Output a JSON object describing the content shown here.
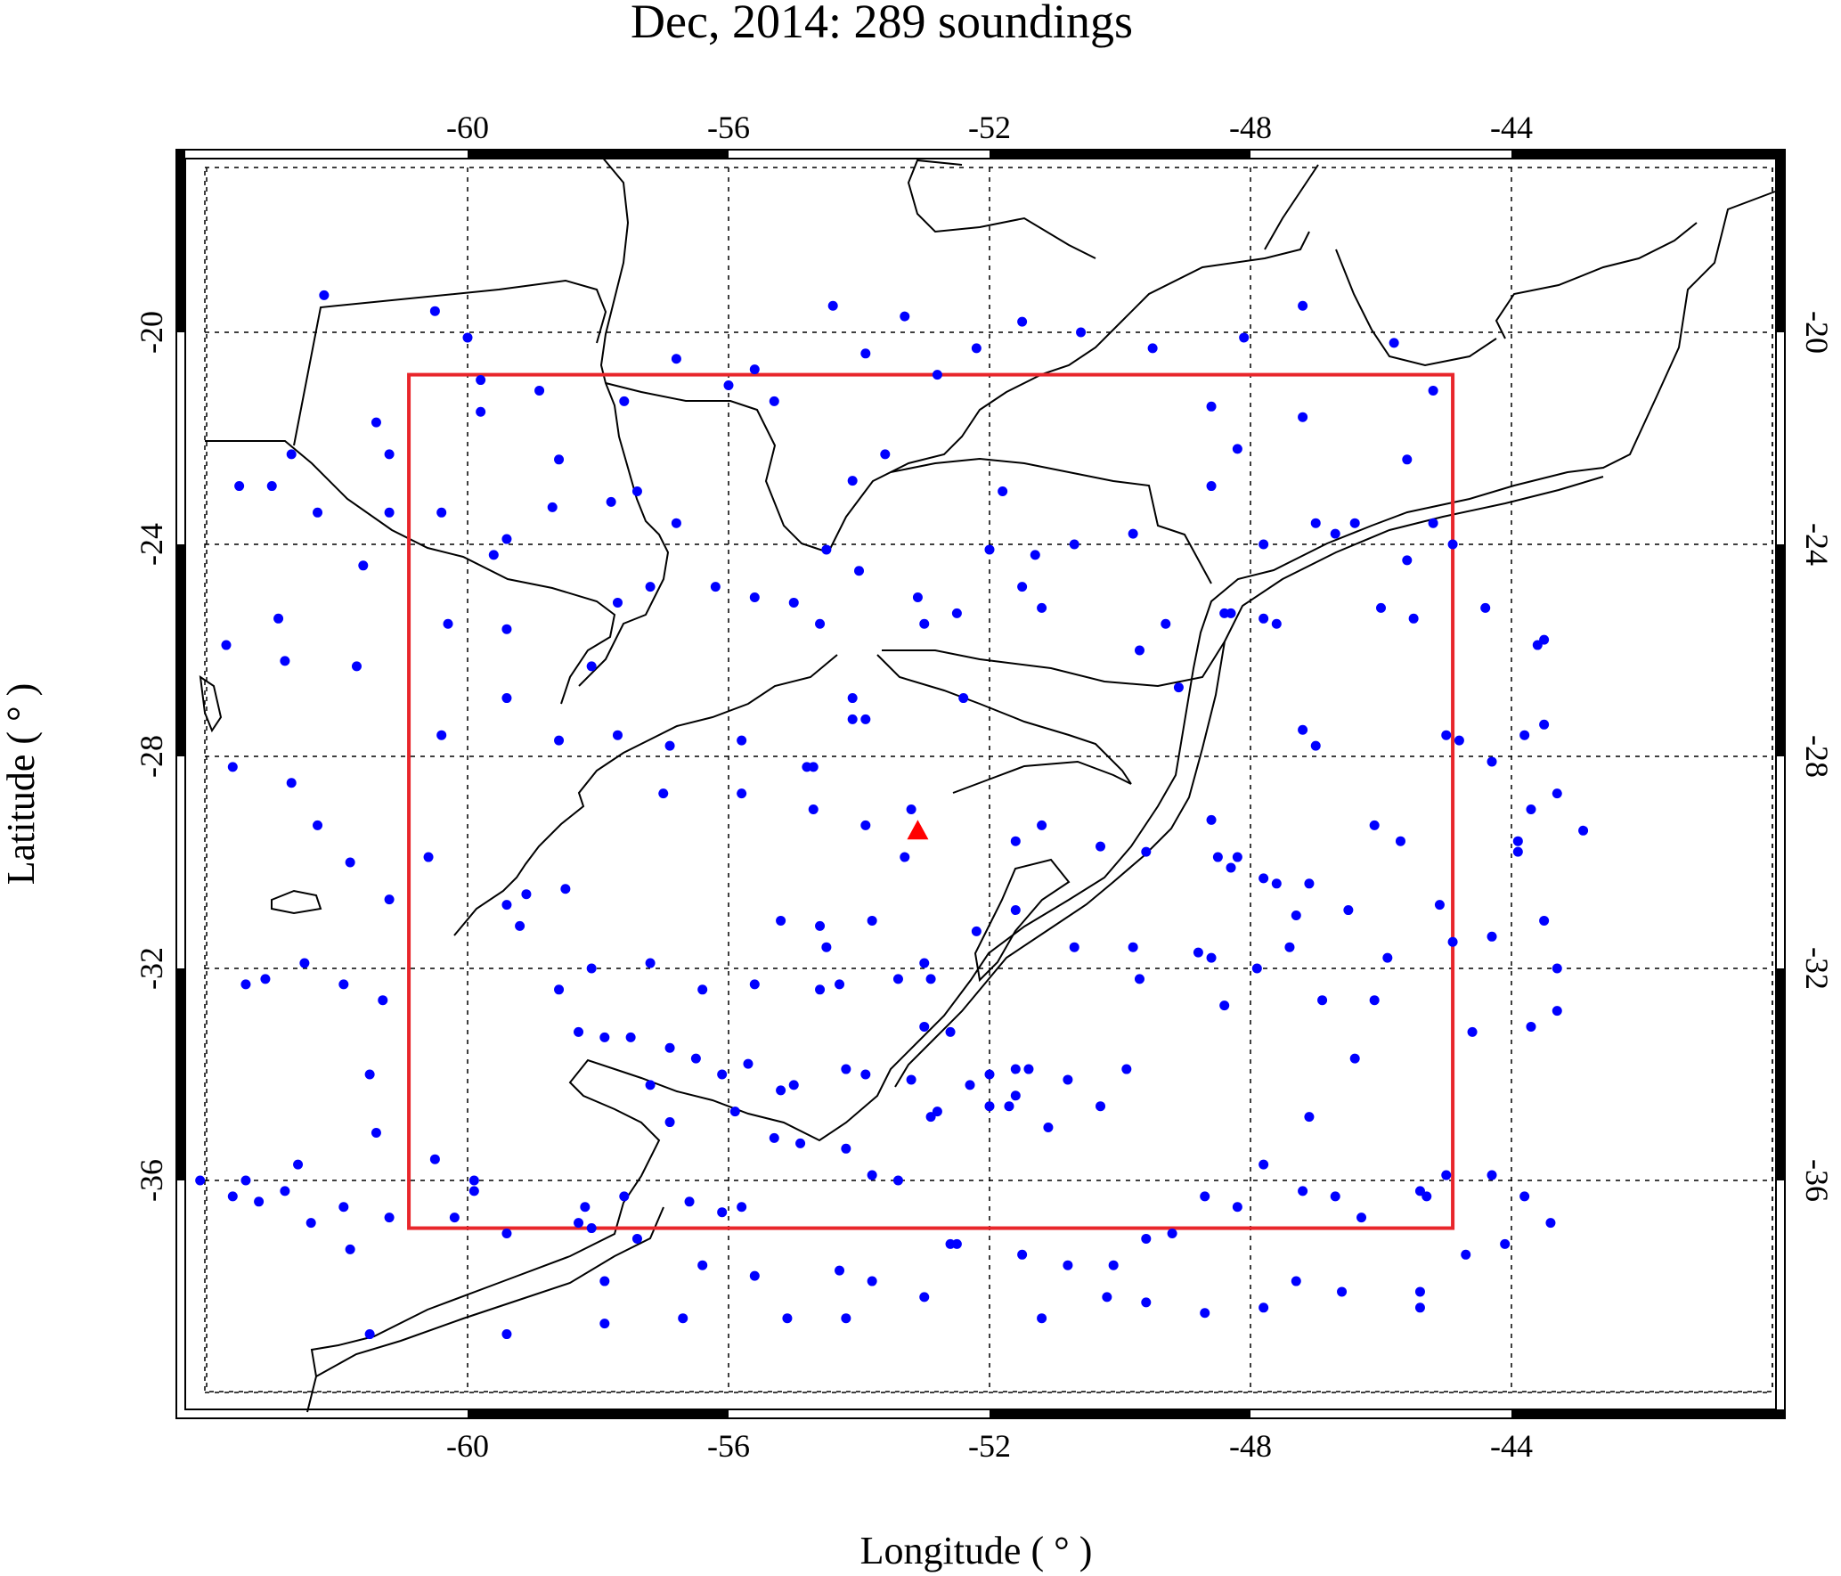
{
  "title": "Dec, 2014: 289 soundings",
  "x_axis_label": "Longitude ( ° )",
  "y_axis_label": "Latitude ( ° )",
  "x_ticks": [
    "-60",
    "-56",
    "-52",
    "-48",
    "-44"
  ],
  "y_ticks": [
    "-20",
    "-24",
    "-28",
    "-32",
    "-36"
  ],
  "colors": {
    "soundings": "#0000ff",
    "box": "#e8262b",
    "station": "#ff0000",
    "coastline": "#000000",
    "grid": "#000000"
  },
  "chart_data": {
    "type": "scatter",
    "projection": "mercator-like",
    "lon_range": [
      -64.5,
      -39.8
    ],
    "lat_range": [
      -40.3,
      -16.4
    ],
    "grid": true,
    "grid_lon": [
      -64,
      -60,
      -56,
      -52,
      -48,
      -44,
      -40
    ],
    "grid_lat": [
      -20,
      -24,
      -28,
      -32,
      -36,
      -40
    ],
    "analysis_box": {
      "lon_min": -60.9,
      "lon_max": -44.9,
      "lat_min": -36.9,
      "lat_max": -20.8
    },
    "station": {
      "lon": -53.1,
      "lat": -29.4,
      "marker": "triangle"
    },
    "soundings_count": 289,
    "soundings": [
      [
        -62.2,
        -19.3
      ],
      [
        -60.5,
        -19.6
      ],
      [
        -60.0,
        -20.1
      ],
      [
        -59.8,
        -20.9
      ],
      [
        -61.4,
        -21.7
      ],
      [
        -59.8,
        -21.5
      ],
      [
        -58.9,
        -21.1
      ],
      [
        -62.7,
        -22.3
      ],
      [
        -61.2,
        -22.3
      ],
      [
        -63.5,
        -22.9
      ],
      [
        -63.0,
        -22.9
      ],
      [
        -62.3,
        -23.4
      ],
      [
        -61.2,
        -23.4
      ],
      [
        -60.4,
        -23.4
      ],
      [
        -58.6,
        -22.4
      ],
      [
        -58.7,
        -23.3
      ],
      [
        -57.8,
        -23.2
      ],
      [
        -57.4,
        -23.0
      ],
      [
        -59.4,
        -23.9
      ],
      [
        -59.6,
        -24.2
      ],
      [
        -56.8,
        -23.6
      ],
      [
        -61.6,
        -24.4
      ],
      [
        -60.3,
        -25.5
      ],
      [
        -59.4,
        -25.6
      ],
      [
        -58.1,
        -26.3
      ],
      [
        -57.7,
        -25.1
      ],
      [
        -57.2,
        -24.8
      ],
      [
        -56.2,
        -24.8
      ],
      [
        -55.6,
        -25.0
      ],
      [
        -55.0,
        -25.1
      ],
      [
        -54.5,
        -24.1
      ],
      [
        -54.0,
        -24.5
      ],
      [
        -53.1,
        -25.0
      ],
      [
        -53.0,
        -25.5
      ],
      [
        -54.6,
        -25.5
      ],
      [
        -54.1,
        -26.9
      ],
      [
        -54.1,
        -27.3
      ],
      [
        -53.9,
        -27.3
      ],
      [
        -62.9,
        -25.4
      ],
      [
        -63.7,
        -25.9
      ],
      [
        -62.8,
        -26.2
      ],
      [
        -61.7,
        -26.3
      ],
      [
        -60.4,
        -27.6
      ],
      [
        -59.4,
        -26.9
      ],
      [
        -58.6,
        -27.7
      ],
      [
        -57.7,
        -27.6
      ],
      [
        -56.9,
        -27.8
      ],
      [
        -55.8,
        -27.7
      ],
      [
        -57.0,
        -28.7
      ],
      [
        -55.8,
        -28.7
      ],
      [
        -54.8,
        -28.2
      ],
      [
        -54.7,
        -28.2
      ],
      [
        -54.7,
        -29.0
      ],
      [
        -53.9,
        -29.3
      ],
      [
        -53.3,
        -29.9
      ],
      [
        -53.2,
        -29.0
      ],
      [
        -52.4,
        -26.9
      ],
      [
        -52.5,
        -25.3
      ],
      [
        -51.8,
        -23.0
      ],
      [
        -52.0,
        -24.1
      ],
      [
        -51.3,
        -24.2
      ],
      [
        -50.7,
        -24.0
      ],
      [
        -51.5,
        -24.8
      ],
      [
        -51.2,
        -25.2
      ],
      [
        -49.1,
        -26.7
      ],
      [
        -49.7,
        -26.0
      ],
      [
        -49.3,
        -25.5
      ],
      [
        -48.4,
        -25.3
      ],
      [
        -48.3,
        -25.3
      ],
      [
        -47.8,
        -25.4
      ],
      [
        -47.6,
        -25.5
      ],
      [
        -47.8,
        -24.0
      ],
      [
        -47.0,
        -23.6
      ],
      [
        -46.7,
        -23.8
      ],
      [
        -46.4,
        -23.6
      ],
      [
        -45.6,
        -24.3
      ],
      [
        -45.2,
        -23.6
      ],
      [
        -44.9,
        -24.0
      ],
      [
        -46.0,
        -25.2
      ],
      [
        -45.5,
        -25.4
      ],
      [
        -44.4,
        -25.2
      ],
      [
        -43.5,
        -25.8
      ],
      [
        -43.6,
        -25.9
      ],
      [
        -43.5,
        -27.4
      ],
      [
        -43.8,
        -27.6
      ],
      [
        -44.8,
        -27.7
      ],
      [
        -45.0,
        -27.6
      ],
      [
        -44.3,
        -28.1
      ],
      [
        -43.3,
        -28.7
      ],
      [
        -43.7,
        -29.0
      ],
      [
        -43.9,
        -29.8
      ],
      [
        -43.9,
        -29.6
      ],
      [
        -45.7,
        -29.6
      ],
      [
        -46.1,
        -29.3
      ],
      [
        -47.2,
        -27.5
      ],
      [
        -47.0,
        -27.8
      ],
      [
        -48.6,
        -29.2
      ],
      [
        -49.6,
        -29.8
      ],
      [
        -50.3,
        -29.7
      ],
      [
        -51.6,
        -29.6
      ],
      [
        -51.2,
        -29.3
      ],
      [
        -48.2,
        -29.9
      ],
      [
        -48.3,
        -30.1
      ],
      [
        -48.5,
        -29.9
      ],
      [
        -47.8,
        -30.3
      ],
      [
        -47.6,
        -30.4
      ],
      [
        -47.1,
        -30.4
      ],
      [
        -46.5,
        -30.9
      ],
      [
        -45.1,
        -30.8
      ],
      [
        -44.9,
        -31.5
      ],
      [
        -44.3,
        -31.4
      ],
      [
        -43.3,
        -32.0
      ],
      [
        -43.3,
        -32.8
      ],
      [
        -43.7,
        -33.1
      ],
      [
        -45.9,
        -31.8
      ],
      [
        -46.1,
        -32.6
      ],
      [
        -47.4,
        -31.6
      ],
      [
        -47.3,
        -31.0
      ],
      [
        -47.9,
        -32.0
      ],
      [
        -48.4,
        -32.7
      ],
      [
        -48.8,
        -31.7
      ],
      [
        -48.6,
        -31.8
      ],
      [
        -49.8,
        -31.6
      ],
      [
        -49.7,
        -32.2
      ],
      [
        -50.7,
        -31.6
      ],
      [
        -49.9,
        -33.9
      ],
      [
        -50.8,
        -34.1
      ],
      [
        -51.6,
        -34.4
      ],
      [
        -52.0,
        -34.6
      ],
      [
        -52.8,
        -34.7
      ],
      [
        -52.6,
        -33.2
      ],
      [
        -52.9,
        -32.2
      ],
      [
        -53.0,
        -31.9
      ],
      [
        -52.2,
        -31.3
      ],
      [
        -51.6,
        -30.9
      ],
      [
        -53.8,
        -31.1
      ],
      [
        -55.2,
        -31.1
      ],
      [
        -54.6,
        -31.2
      ],
      [
        -54.5,
        -31.6
      ],
      [
        -54.3,
        -32.3
      ],
      [
        -54.6,
        -32.4
      ],
      [
        -55.6,
        -32.3
      ],
      [
        -56.4,
        -32.4
      ],
      [
        -57.2,
        -31.9
      ],
      [
        -58.1,
        -32.0
      ],
      [
        -58.3,
        -33.2
      ],
      [
        -58.6,
        -32.4
      ],
      [
        -57.9,
        -33.3
      ],
      [
        -57.5,
        -33.3
      ],
      [
        -56.9,
        -33.5
      ],
      [
        -57.2,
        -34.2
      ],
      [
        -56.5,
        -33.7
      ],
      [
        -56.1,
        -34.0
      ],
      [
        -55.7,
        -33.8
      ],
      [
        -55.0,
        -34.2
      ],
      [
        -53.9,
        -34.0
      ],
      [
        -54.2,
        -33.9
      ],
      [
        -53.2,
        -34.1
      ],
      [
        -52.3,
        -34.2
      ],
      [
        -52.0,
        -34.0
      ],
      [
        -53.0,
        -33.1
      ],
      [
        -53.4,
        -32.2
      ],
      [
        -51.4,
        -33.9
      ],
      [
        -50.3,
        -34.6
      ],
      [
        -51.1,
        -35.0
      ],
      [
        -52.9,
        -34.8
      ],
      [
        -51.7,
        -34.6
      ],
      [
        -51.6,
        -33.9
      ],
      [
        -55.2,
        -34.3
      ],
      [
        -55.9,
        -34.7
      ],
      [
        -56.9,
        -34.9
      ],
      [
        -55.3,
        -35.2
      ],
      [
        -54.9,
        -35.3
      ],
      [
        -54.2,
        -35.4
      ],
      [
        -53.8,
        -35.9
      ],
      [
        -53.4,
        -36.0
      ],
      [
        -55.8,
        -36.5
      ],
      [
        -56.1,
        -36.6
      ],
      [
        -57.6,
        -36.3
      ],
      [
        -58.2,
        -36.5
      ],
      [
        -59.9,
        -36.2
      ],
      [
        -61.2,
        -36.7
      ],
      [
        -61.9,
        -36.5
      ],
      [
        -60.2,
        -36.7
      ],
      [
        -61.8,
        -37.3
      ],
      [
        -62.8,
        -36.2
      ],
      [
        -63.4,
        -36.0
      ],
      [
        -62.6,
        -35.7
      ],
      [
        -60.5,
        -35.6
      ],
      [
        -61.5,
        -34.0
      ],
      [
        -61.4,
        -35.1
      ],
      [
        -59.9,
        -36.0
      ],
      [
        -59.4,
        -37.0
      ],
      [
        -58.3,
        -36.8
      ],
      [
        -58.1,
        -36.9
      ],
      [
        -57.9,
        -37.9
      ],
      [
        -57.4,
        -37.1
      ],
      [
        -56.4,
        -37.6
      ],
      [
        -56.6,
        -36.4
      ],
      [
        -55.6,
        -37.8
      ],
      [
        -54.3,
        -37.7
      ],
      [
        -53.8,
        -37.9
      ],
      [
        -52.5,
        -37.2
      ],
      [
        -51.5,
        -37.4
      ],
      [
        -50.8,
        -37.6
      ],
      [
        -50.1,
        -37.6
      ],
      [
        -49.6,
        -37.1
      ],
      [
        -49.2,
        -37.0
      ],
      [
        -48.7,
        -36.3
      ],
      [
        -48.2,
        -36.5
      ],
      [
        -47.2,
        -36.2
      ],
      [
        -46.7,
        -36.3
      ],
      [
        -46.3,
        -36.7
      ],
      [
        -45.4,
        -36.2
      ],
      [
        -45.3,
        -36.3
      ],
      [
        -45.0,
        -35.9
      ],
      [
        -44.3,
        -35.9
      ],
      [
        -43.8,
        -36.3
      ],
      [
        -43.4,
        -36.8
      ],
      [
        -44.1,
        -37.2
      ],
      [
        -44.7,
        -37.4
      ],
      [
        -45.4,
        -38.1
      ],
      [
        -45.4,
        -38.4
      ],
      [
        -46.6,
        -38.1
      ],
      [
        -47.3,
        -37.9
      ],
      [
        -47.8,
        -38.4
      ],
      [
        -48.7,
        -38.5
      ],
      [
        -49.6,
        -38.3
      ],
      [
        -50.2,
        -38.2
      ],
      [
        -51.2,
        -38.6
      ],
      [
        -52.6,
        -37.2
      ],
      [
        -53.0,
        -38.2
      ],
      [
        -54.2,
        -38.6
      ],
      [
        -55.1,
        -38.6
      ],
      [
        -56.7,
        -38.6
      ],
      [
        -57.9,
        -38.7
      ],
      [
        -59.4,
        -38.9
      ],
      [
        -61.5,
        -38.9
      ],
      [
        -62.4,
        -36.8
      ],
      [
        -63.6,
        -36.3
      ],
      [
        -64.1,
        -36.0
      ],
      [
        -63.2,
        -36.4
      ],
      [
        -61.3,
        -32.6
      ],
      [
        -61.9,
        -32.3
      ],
      [
        -62.5,
        -31.9
      ],
      [
        -63.1,
        -32.2
      ],
      [
        -63.4,
        -32.3
      ],
      [
        -62.3,
        -29.3
      ],
      [
        -62.7,
        -28.5
      ],
      [
        -63.6,
        -28.2
      ],
      [
        -61.8,
        -30.0
      ],
      [
        -61.2,
        -30.7
      ],
      [
        -60.6,
        -29.9
      ],
      [
        -59.1,
        -30.6
      ],
      [
        -59.4,
        -30.8
      ],
      [
        -59.2,
        -31.2
      ],
      [
        -58.5,
        -30.5
      ],
      [
        -47.8,
        -35.7
      ],
      [
        -47.1,
        -34.8
      ],
      [
        -46.4,
        -33.7
      ],
      [
        -46.9,
        -32.6
      ],
      [
        -44.6,
        -33.2
      ],
      [
        -43.5,
        -31.1
      ],
      [
        -42.9,
        -29.4
      ],
      [
        -45.2,
        -21.1
      ],
      [
        -45.6,
        -22.4
      ],
      [
        -45.8,
        -20.2
      ],
      [
        -47.2,
        -19.5
      ],
      [
        -48.6,
        -21.4
      ],
      [
        -49.5,
        -20.3
      ],
      [
        -50.6,
        -20.0
      ],
      [
        -51.5,
        -19.8
      ],
      [
        -52.2,
        -20.3
      ],
      [
        -53.3,
        -19.7
      ],
      [
        -53.9,
        -20.4
      ],
      [
        -54.4,
        -19.5
      ],
      [
        -55.6,
        -20.7
      ],
      [
        -56.8,
        -20.5
      ],
      [
        -57.6,
        -21.3
      ],
      [
        -56.0,
        -21.0
      ],
      [
        -55.3,
        -21.3
      ],
      [
        -54.1,
        -22.8
      ],
      [
        -53.6,
        -22.3
      ],
      [
        -52.8,
        -20.8
      ],
      [
        -48.1,
        -20.1
      ],
      [
        -47.2,
        -21.6
      ],
      [
        -48.2,
        -22.2
      ],
      [
        -48.6,
        -22.9
      ],
      [
        -49.8,
        -23.8
      ]
    ]
  }
}
